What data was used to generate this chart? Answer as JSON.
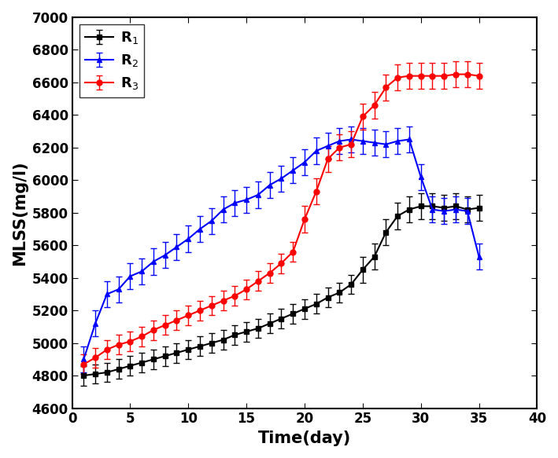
{
  "R1": {
    "x": [
      1,
      2,
      3,
      4,
      5,
      6,
      7,
      8,
      9,
      10,
      11,
      12,
      13,
      14,
      15,
      16,
      17,
      18,
      19,
      20,
      21,
      22,
      23,
      24,
      25,
      26,
      27,
      28,
      29,
      30,
      31,
      32,
      33,
      34,
      35
    ],
    "y": [
      4800,
      4810,
      4820,
      4840,
      4860,
      4880,
      4900,
      4920,
      4940,
      4960,
      4980,
      5000,
      5020,
      5050,
      5070,
      5090,
      5120,
      5150,
      5180,
      5210,
      5240,
      5280,
      5310,
      5360,
      5450,
      5530,
      5680,
      5780,
      5820,
      5840,
      5840,
      5830,
      5840,
      5820,
      5830
    ],
    "yerr": [
      60,
      60,
      60,
      60,
      60,
      60,
      60,
      60,
      60,
      60,
      60,
      60,
      60,
      60,
      60,
      60,
      60,
      60,
      60,
      60,
      60,
      60,
      60,
      60,
      80,
      80,
      80,
      80,
      80,
      80,
      80,
      80,
      80,
      80,
      80
    ],
    "color": "#000000",
    "marker": "s",
    "label": "R$_1$"
  },
  "R2": {
    "x": [
      1,
      2,
      3,
      4,
      5,
      6,
      7,
      8,
      9,
      10,
      11,
      12,
      13,
      14,
      15,
      16,
      17,
      18,
      19,
      20,
      21,
      22,
      23,
      24,
      25,
      26,
      27,
      28,
      29,
      30,
      31,
      32,
      33,
      34,
      35
    ],
    "y": [
      4900,
      5120,
      5300,
      5330,
      5410,
      5440,
      5500,
      5540,
      5590,
      5640,
      5700,
      5750,
      5820,
      5860,
      5880,
      5910,
      5970,
      6010,
      6060,
      6110,
      6180,
      6210,
      6240,
      6250,
      6240,
      6230,
      6220,
      6240,
      6250,
      6020,
      5820,
      5810,
      5820,
      5810,
      5530
    ],
    "yerr": [
      80,
      80,
      80,
      80,
      80,
      80,
      80,
      80,
      80,
      80,
      80,
      80,
      80,
      80,
      80,
      80,
      80,
      80,
      80,
      80,
      80,
      80,
      80,
      80,
      80,
      80,
      80,
      80,
      80,
      80,
      80,
      80,
      80,
      80,
      80
    ],
    "color": "#0000FF",
    "marker": "^",
    "label": "R$_2$"
  },
  "R3": {
    "x": [
      1,
      2,
      3,
      4,
      5,
      6,
      7,
      8,
      9,
      10,
      11,
      12,
      13,
      14,
      15,
      16,
      17,
      18,
      19,
      20,
      21,
      22,
      23,
      24,
      25,
      26,
      27,
      28,
      29,
      30,
      31,
      32,
      33,
      34,
      35
    ],
    "y": [
      4870,
      4910,
      4960,
      4990,
      5010,
      5040,
      5080,
      5110,
      5140,
      5170,
      5200,
      5230,
      5260,
      5290,
      5330,
      5380,
      5430,
      5490,
      5560,
      5760,
      5930,
      6130,
      6200,
      6220,
      6390,
      6460,
      6570,
      6630,
      6640,
      6640,
      6640,
      6640,
      6650,
      6650,
      6640
    ],
    "yerr": [
      60,
      60,
      60,
      60,
      60,
      60,
      60,
      60,
      60,
      60,
      60,
      60,
      60,
      60,
      60,
      60,
      60,
      60,
      60,
      80,
      80,
      80,
      80,
      80,
      80,
      80,
      80,
      80,
      80,
      80,
      80,
      80,
      80,
      80,
      80
    ],
    "color": "#FF0000",
    "marker": "o",
    "label": "R$_3$"
  },
  "xlabel": "Time(day)",
  "ylabel": "MLSS(mg/l)",
  "xlim": [
    0,
    40
  ],
  "ylim": [
    4600,
    7000
  ],
  "xticks": [
    0,
    5,
    10,
    15,
    20,
    25,
    30,
    35,
    40
  ],
  "yticks": [
    4600,
    4800,
    5000,
    5200,
    5400,
    5600,
    5800,
    6000,
    6200,
    6400,
    6600,
    6800,
    7000
  ],
  "figsize": [
    7.09,
    5.83
  ],
  "dpi": 100,
  "linewidth": 1.5,
  "markersize": 5,
  "capsize": 3,
  "elinewidth": 1.0,
  "legend_loc": "upper left",
  "legend_fontsize": 13,
  "axis_fontsize": 15,
  "tick_fontsize": 12
}
